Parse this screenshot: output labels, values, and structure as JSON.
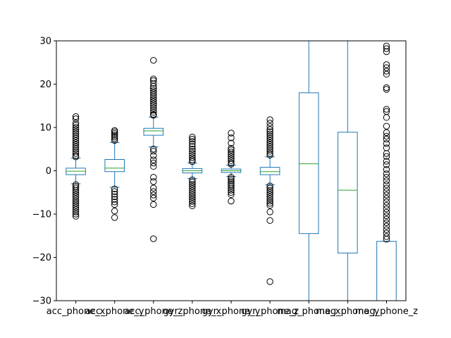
{
  "chart_data": {
    "type": "box",
    "title": "",
    "xlabel": "",
    "ylabel": "",
    "ylim": [
      -30,
      30
    ],
    "y_ticks": [
      -30,
      -20,
      -10,
      0,
      10,
      20,
      30
    ],
    "y_tick_labels": [
      "−30",
      "−20",
      "−10",
      "0",
      "10",
      "20",
      "30"
    ],
    "grid": false,
    "colors": {
      "box": "#1f77b4",
      "median": "#2ca02c",
      "flier": "#000000"
    },
    "categories": [
      "acc_phone_x",
      "acc_phone_y",
      "acc_phone_z",
      "gyr_phone_x",
      "gyr_phone_y",
      "gyr_phone_z",
      "mag_phone_x",
      "mag_phone_y",
      "mag_phone_z"
    ],
    "boxes": [
      {
        "label": "acc_phone_x",
        "whislo": -3.0,
        "q1": -0.9,
        "med": -0.1,
        "q3": 0.6,
        "whishi": 2.9,
        "fliers": [
          12.5,
          12.0,
          11.0,
          10.5,
          10.0,
          9.5,
          9.0,
          8.5,
          8.0,
          7.5,
          7.0,
          6.5,
          6.0,
          5.5,
          5.0,
          4.5,
          4.0,
          3.5,
          3.2,
          -3.2,
          -3.6,
          -4.0,
          -4.5,
          -5.0,
          -5.5,
          -6.0,
          -6.5,
          -7.0,
          -7.5,
          -8.0,
          -8.5,
          -9.0,
          -9.5,
          -10.0,
          -10.5
        ]
      },
      {
        "label": "acc_phone_y",
        "whislo": -3.8,
        "q1": -0.2,
        "med": 0.6,
        "q3": 2.6,
        "whishi": 6.5,
        "fliers": [
          9.3,
          9.0,
          8.6,
          8.2,
          7.8,
          7.4,
          7.0,
          -4.2,
          -4.8,
          -5.4,
          -6.0,
          -6.6,
          -7.2,
          -7.8,
          -9.3,
          -10.8
        ]
      },
      {
        "label": "acc_phone_z",
        "whislo": 5.5,
        "q1": 8.2,
        "med": 9.2,
        "q3": 9.8,
        "whishi": 12.4,
        "fliers": [
          25.5,
          21.2,
          20.8,
          20.2,
          19.5,
          19.0,
          18.5,
          18.0,
          17.5,
          17.0,
          16.5,
          16.0,
          15.5,
          15.0,
          14.5,
          14.0,
          13.5,
          13.0,
          12.8,
          5.0,
          4.5,
          3.5,
          2.5,
          1.8,
          1.0,
          -1.5,
          -2.5,
          -4.0,
          -4.8,
          -5.6,
          -6.3,
          -7.8,
          -15.7
        ]
      },
      {
        "label": "gyr_phone_x",
        "whislo": -1.8,
        "q1": -0.5,
        "med": 0.0,
        "q3": 0.5,
        "whishi": 1.8,
        "fliers": [
          7.8,
          7.3,
          6.8,
          6.2,
          5.6,
          5.0,
          4.5,
          4.0,
          3.5,
          3.0,
          2.5,
          2.1,
          -2.1,
          -2.6,
          -3.1,
          -3.6,
          -4.1,
          -4.6,
          -5.1,
          -5.6,
          -6.1,
          -6.6,
          -7.1,
          -7.6,
          -8.1
        ]
      },
      {
        "label": "gyr_phone_y",
        "whislo": -1.3,
        "q1": -0.4,
        "med": 0.0,
        "q3": 0.4,
        "whishi": 1.3,
        "fliers": [
          8.7,
          7.6,
          6.4,
          5.2,
          4.8,
          4.3,
          3.8,
          3.3,
          2.8,
          2.3,
          1.8,
          1.5,
          -1.5,
          -1.9,
          -2.3,
          -2.7,
          -3.1,
          -3.5,
          -4.0,
          -4.5,
          -5.0,
          -5.5,
          -7.0
        ]
      },
      {
        "label": "gyr_phone_z",
        "whislo": -3.2,
        "q1": -0.9,
        "med": -0.2,
        "q3": 0.8,
        "whishi": 3.2,
        "fliers": [
          11.8,
          11.0,
          10.2,
          9.5,
          9.0,
          8.5,
          8.0,
          7.5,
          7.0,
          6.5,
          6.0,
          5.5,
          5.0,
          4.5,
          4.0,
          3.6,
          -3.5,
          -4.0,
          -4.5,
          -5.0,
          -5.5,
          -6.0,
          -6.5,
          -7.0,
          -7.5,
          -8.0,
          -9.5,
          -11.5,
          -25.6
        ]
      },
      {
        "label": "mag_phone_x",
        "whislo": -32.0,
        "q1": -14.5,
        "med": 1.6,
        "q3": 18.0,
        "whishi": 32.0,
        "fliers": []
      },
      {
        "label": "mag_phone_y",
        "whislo": -32.0,
        "q1": -19.0,
        "med": -4.5,
        "q3": 8.9,
        "whishi": 32.0,
        "fliers": []
      },
      {
        "label": "mag_phone_z",
        "whislo": -32.0,
        "q1": -32.0,
        "med": -32.0,
        "q3": -16.3,
        "whishi": -16.3,
        "fliers": [
          28.8,
          28.2,
          27.5,
          24.5,
          23.8,
          23.0,
          22.3,
          19.2,
          18.8,
          14.2,
          13.7,
          12.3,
          10.3,
          8.8,
          8.0,
          7.3,
          6.3,
          5.3,
          4.0,
          3.3,
          2.2,
          1.4,
          0.3,
          -0.7,
          -1.5,
          -2.3,
          -3.2,
          -4.0,
          -4.8,
          -5.6,
          -6.4,
          -7.2,
          -8.0,
          -8.8,
          -9.6,
          -10.4,
          -11.2,
          -12.0,
          -12.8,
          -13.6,
          -14.4,
          -15.2,
          -15.8
        ]
      }
    ]
  }
}
